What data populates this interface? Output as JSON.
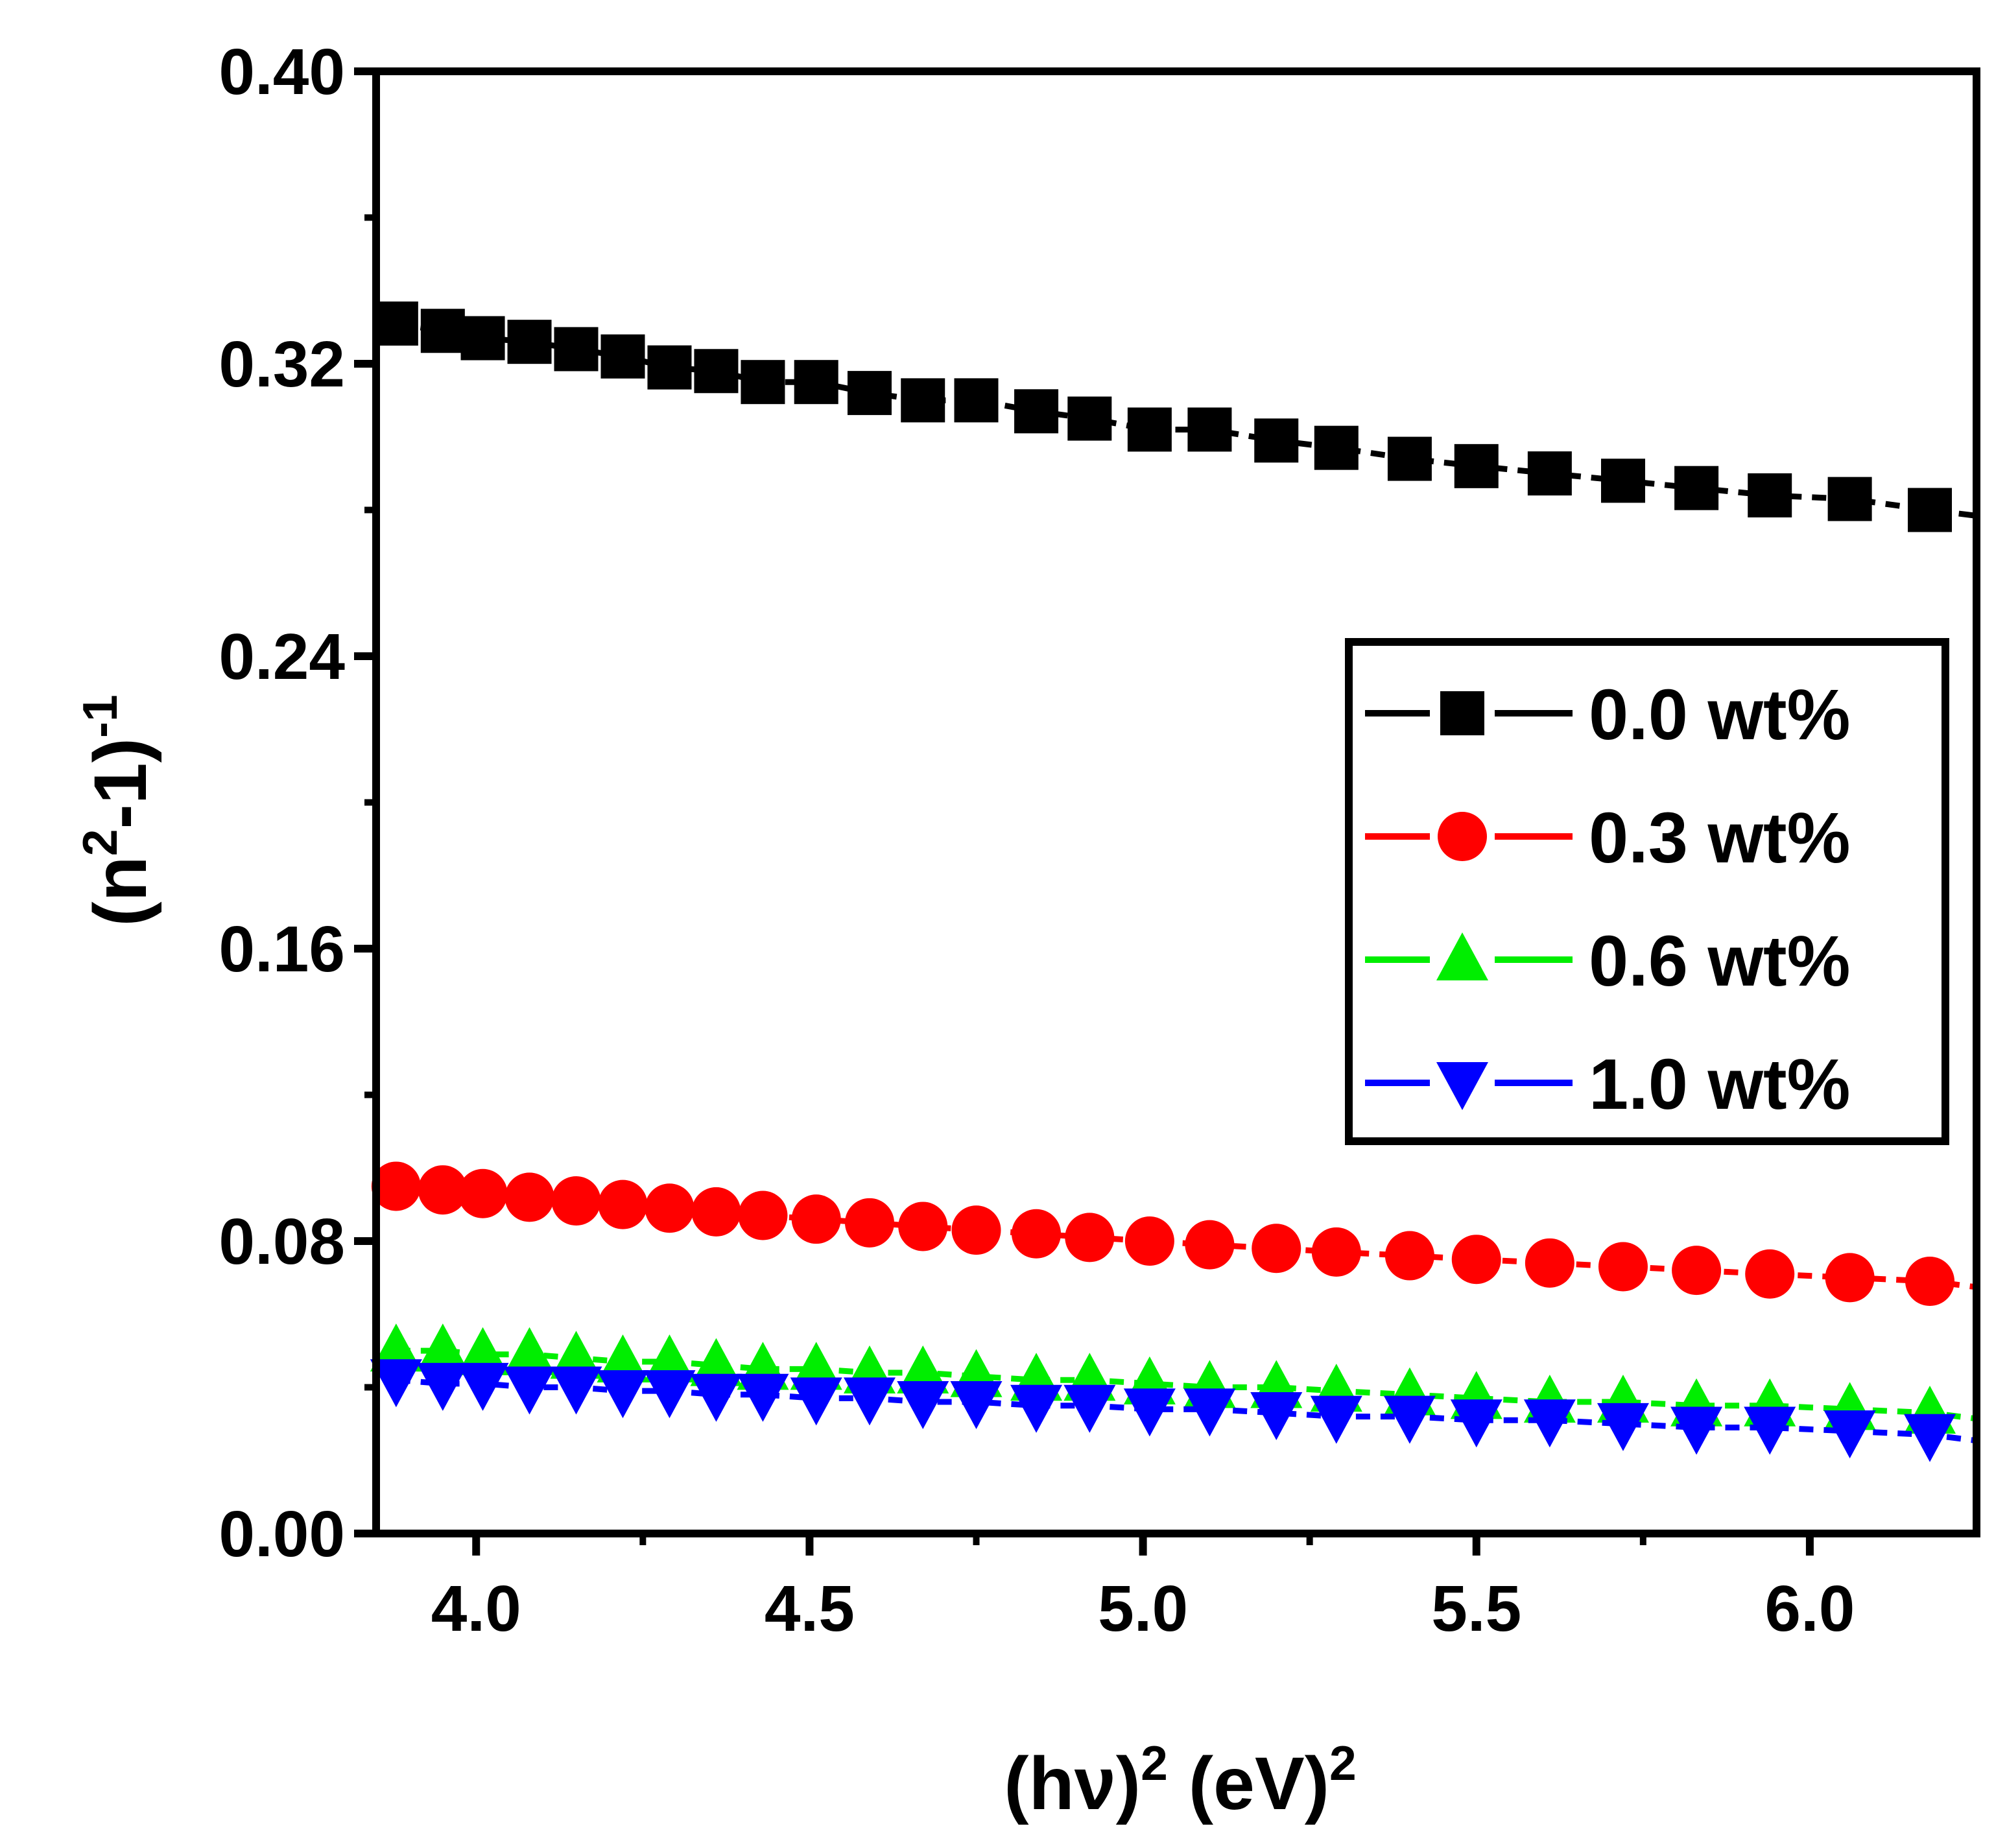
{
  "chart_data": {
    "type": "line",
    "title": "",
    "xlabel": {
      "pre": "(hν)",
      "sup1": "2",
      "mid": " (eV)",
      "sup2": "2"
    },
    "ylabel": {
      "pre": "(n",
      "sup1": "2",
      "mid": "-1)",
      "sup2": "-1"
    },
    "xlim": [
      3.85,
      6.25
    ],
    "ylim": [
      0.0,
      0.4
    ],
    "xticks": [
      4.0,
      4.5,
      5.0,
      5.5,
      6.0
    ],
    "xtick_labels": [
      "4.0",
      "4.5",
      "5.0",
      "5.5",
      "6.0"
    ],
    "yticks": [
      0.0,
      0.08,
      0.16,
      0.24,
      0.32,
      0.4
    ],
    "ytick_labels": [
      "0.00",
      "0.08",
      "0.16",
      "0.24",
      "0.32",
      "0.40"
    ],
    "grid": false,
    "legend_position": "center-right",
    "x": [
      3.88,
      3.95,
      4.01,
      4.08,
      4.15,
      4.22,
      4.29,
      4.36,
      4.43,
      4.51,
      4.59,
      4.67,
      4.75,
      4.84,
      4.92,
      5.01,
      5.1,
      5.2,
      5.29,
      5.4,
      5.5,
      5.61,
      5.72,
      5.83,
      5.94,
      6.06,
      6.18
    ],
    "series": [
      {
        "name": "0.0 wt%",
        "color": "#000000",
        "marker": "square",
        "values": [
          0.331,
          0.329,
          0.327,
          0.326,
          0.324,
          0.322,
          0.319,
          0.318,
          0.315,
          0.315,
          0.312,
          0.31,
          0.31,
          0.307,
          0.305,
          0.302,
          0.302,
          0.299,
          0.297,
          0.294,
          0.292,
          0.29,
          0.288,
          0.286,
          0.284,
          0.283,
          0.28
        ]
      },
      {
        "name": "0.3 wt%",
        "color": "#ff0000",
        "marker": "circle",
        "values": [
          0.095,
          0.094,
          0.093,
          0.092,
          0.091,
          0.09,
          0.089,
          0.088,
          0.087,
          0.086,
          0.085,
          0.084,
          0.083,
          0.082,
          0.081,
          0.08,
          0.079,
          0.078,
          0.077,
          0.076,
          0.075,
          0.074,
          0.073,
          0.072,
          0.071,
          0.07,
          0.069
        ]
      },
      {
        "name": "0.6 wt%",
        "color": "#00ee00",
        "marker": "triangle-up",
        "values": [
          0.05,
          0.05,
          0.049,
          0.049,
          0.048,
          0.047,
          0.047,
          0.046,
          0.045,
          0.045,
          0.044,
          0.044,
          0.043,
          0.042,
          0.042,
          0.041,
          0.04,
          0.04,
          0.039,
          0.038,
          0.037,
          0.036,
          0.036,
          0.035,
          0.035,
          0.034,
          0.033
        ]
      },
      {
        "name": "1.0 wt%",
        "color": "#0000ff",
        "marker": "triangle-down",
        "values": [
          0.042,
          0.041,
          0.041,
          0.04,
          0.04,
          0.039,
          0.039,
          0.038,
          0.038,
          0.037,
          0.037,
          0.036,
          0.036,
          0.035,
          0.035,
          0.034,
          0.034,
          0.033,
          0.032,
          0.032,
          0.031,
          0.031,
          0.03,
          0.029,
          0.029,
          0.028,
          0.027
        ]
      }
    ]
  }
}
